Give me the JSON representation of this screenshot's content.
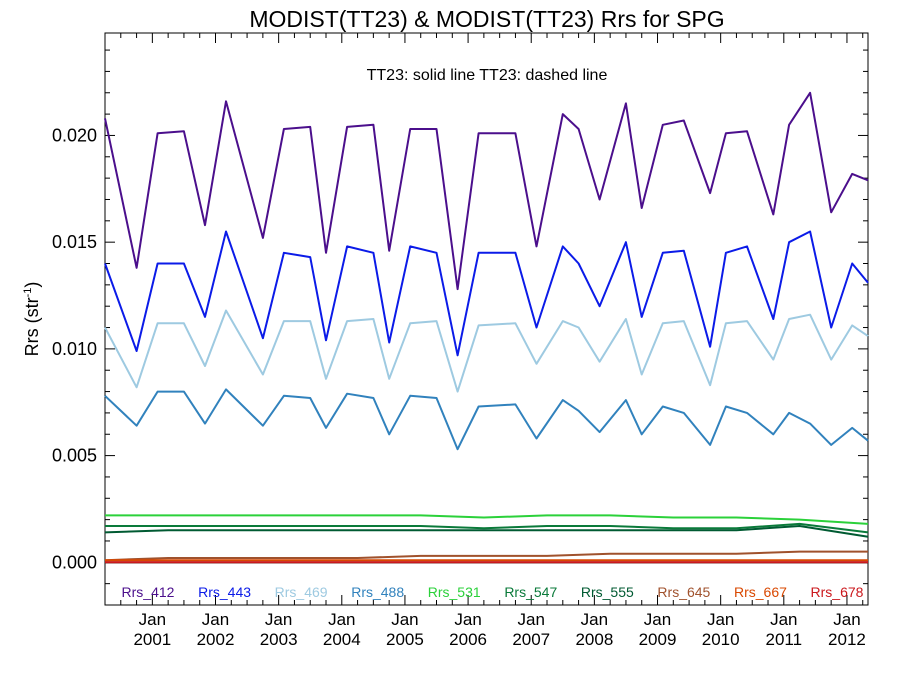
{
  "chart_data": {
    "type": "line",
    "title": "MODIST(TT23) & MODIST(TT23)  Rrs for SPG",
    "subtitle": "TT23: solid line   TT23: dashed line",
    "ylabel": "Rrs (str",
    "ylabel_sup": "-1",
    "ylabel_close": ")",
    "ylim": [
      -0.002,
      0.0248
    ],
    "y_ticks": [
      {
        "value": 0.0,
        "label": "0.000"
      },
      {
        "value": 0.005,
        "label": "0.005"
      },
      {
        "value": 0.01,
        "label": "0.010"
      },
      {
        "value": 0.015,
        "label": "0.015"
      },
      {
        "value": 0.02,
        "label": "0.020"
      }
    ],
    "x_start": "2000-04",
    "x_end": "2012-05",
    "x_ticks": [
      {
        "date": "2001-01",
        "month": "Jan",
        "year": "2001"
      },
      {
        "date": "2002-01",
        "month": "Jan",
        "year": "2002"
      },
      {
        "date": "2003-01",
        "month": "Jan",
        "year": "2003"
      },
      {
        "date": "2004-01",
        "month": "Jan",
        "year": "2004"
      },
      {
        "date": "2005-01",
        "month": "Jan",
        "year": "2005"
      },
      {
        "date": "2006-01",
        "month": "Jan",
        "year": "2006"
      },
      {
        "date": "2007-01",
        "month": "Jan",
        "year": "2007"
      },
      {
        "date": "2008-01",
        "month": "Jan",
        "year": "2008"
      },
      {
        "date": "2009-01",
        "month": "Jan",
        "year": "2009"
      },
      {
        "date": "2010-01",
        "month": "Jan",
        "year": "2010"
      },
      {
        "date": "2011-01",
        "month": "Jan",
        "year": "2011"
      },
      {
        "date": "2012-01",
        "month": "Jan",
        "year": "2012"
      }
    ],
    "grid": false,
    "legend_placement": "bottom",
    "series": [
      {
        "name": "Rrs_412",
        "color": "#4b0f8c",
        "x": [
          "2000-04",
          "2000-10",
          "2001-02",
          "2001-07",
          "2001-11",
          "2002-03",
          "2002-10",
          "2003-02",
          "2003-07",
          "2003-10",
          "2004-02",
          "2004-07",
          "2004-10",
          "2005-02",
          "2005-07",
          "2005-11",
          "2006-03",
          "2006-10",
          "2007-02",
          "2007-07",
          "2007-10",
          "2008-02",
          "2008-07",
          "2008-10",
          "2009-02",
          "2009-06",
          "2009-11",
          "2010-02",
          "2010-06",
          "2010-11",
          "2011-02",
          "2011-06",
          "2011-10",
          "2012-02",
          "2012-05"
        ],
        "values": [
          0.0208,
          0.0138,
          0.0201,
          0.0202,
          0.0158,
          0.0216,
          0.0152,
          0.0203,
          0.0204,
          0.0145,
          0.0204,
          0.0205,
          0.0146,
          0.0203,
          0.0203,
          0.0128,
          0.0201,
          0.0201,
          0.0148,
          0.021,
          0.0203,
          0.017,
          0.0215,
          0.0166,
          0.0205,
          0.0207,
          0.0173,
          0.0201,
          0.0202,
          0.0163,
          0.0205,
          0.022,
          0.0164,
          0.0182,
          0.0179
        ]
      },
      {
        "name": "Rrs_443",
        "color": "#0b1be8",
        "x": [
          "2000-04",
          "2000-10",
          "2001-02",
          "2001-07",
          "2001-11",
          "2002-03",
          "2002-10",
          "2003-02",
          "2003-07",
          "2003-10",
          "2004-02",
          "2004-07",
          "2004-10",
          "2005-02",
          "2005-07",
          "2005-11",
          "2006-03",
          "2006-10",
          "2007-02",
          "2007-07",
          "2007-10",
          "2008-02",
          "2008-07",
          "2008-10",
          "2009-02",
          "2009-06",
          "2009-11",
          "2010-02",
          "2010-06",
          "2010-11",
          "2011-02",
          "2011-06",
          "2011-10",
          "2012-02",
          "2012-05"
        ],
        "values": [
          0.014,
          0.0099,
          0.014,
          0.014,
          0.0115,
          0.0155,
          0.0105,
          0.0145,
          0.0143,
          0.0104,
          0.0148,
          0.0145,
          0.0103,
          0.0148,
          0.0145,
          0.0097,
          0.0145,
          0.0145,
          0.011,
          0.0148,
          0.014,
          0.012,
          0.015,
          0.0115,
          0.0145,
          0.0146,
          0.0101,
          0.0145,
          0.0148,
          0.0114,
          0.015,
          0.0155,
          0.011,
          0.014,
          0.0131
        ]
      },
      {
        "name": "Rrs_469",
        "color": "#9ecae1",
        "x": [
          "2000-04",
          "2000-10",
          "2001-02",
          "2001-07",
          "2001-11",
          "2002-03",
          "2002-10",
          "2003-02",
          "2003-07",
          "2003-10",
          "2004-02",
          "2004-07",
          "2004-10",
          "2005-02",
          "2005-07",
          "2005-11",
          "2006-03",
          "2006-10",
          "2007-02",
          "2007-07",
          "2007-10",
          "2008-02",
          "2008-07",
          "2008-10",
          "2009-02",
          "2009-06",
          "2009-11",
          "2010-02",
          "2010-06",
          "2010-11",
          "2011-02",
          "2011-06",
          "2011-10",
          "2012-02",
          "2012-05"
        ],
        "values": [
          0.011,
          0.0082,
          0.0112,
          0.0112,
          0.0092,
          0.0118,
          0.0088,
          0.0113,
          0.0113,
          0.0086,
          0.0113,
          0.0114,
          0.0086,
          0.0112,
          0.0113,
          0.008,
          0.0111,
          0.0112,
          0.0093,
          0.0113,
          0.011,
          0.0094,
          0.0114,
          0.0088,
          0.0112,
          0.0113,
          0.0083,
          0.0112,
          0.0113,
          0.0095,
          0.0114,
          0.0116,
          0.0095,
          0.0111,
          0.0106
        ]
      },
      {
        "name": "Rrs_488",
        "color": "#3182bd",
        "x": [
          "2000-04",
          "2000-10",
          "2001-02",
          "2001-07",
          "2001-11",
          "2002-03",
          "2002-10",
          "2003-02",
          "2003-07",
          "2003-10",
          "2004-02",
          "2004-07",
          "2004-10",
          "2005-02",
          "2005-07",
          "2005-11",
          "2006-03",
          "2006-10",
          "2007-02",
          "2007-07",
          "2007-10",
          "2008-02",
          "2008-07",
          "2008-10",
          "2009-02",
          "2009-06",
          "2009-11",
          "2010-02",
          "2010-06",
          "2010-11",
          "2011-02",
          "2011-06",
          "2011-10",
          "2012-02",
          "2012-05"
        ],
        "values": [
          0.0078,
          0.0064,
          0.008,
          0.008,
          0.0065,
          0.0081,
          0.0064,
          0.0078,
          0.0077,
          0.0063,
          0.0079,
          0.0077,
          0.006,
          0.0078,
          0.0077,
          0.0053,
          0.0073,
          0.0074,
          0.0058,
          0.0076,
          0.0071,
          0.0061,
          0.0076,
          0.006,
          0.0073,
          0.007,
          0.0055,
          0.0073,
          0.007,
          0.006,
          0.007,
          0.0065,
          0.0055,
          0.0063,
          0.0057
        ]
      },
      {
        "name": "Rrs_531",
        "color": "#2bd13a",
        "x": [
          "2000-04",
          "2001-04",
          "2002-04",
          "2003-04",
          "2004-04",
          "2005-04",
          "2006-04",
          "2007-04",
          "2008-04",
          "2009-04",
          "2010-04",
          "2011-04",
          "2012-05"
        ],
        "values": [
          0.0022,
          0.0022,
          0.0022,
          0.0022,
          0.0022,
          0.0022,
          0.0021,
          0.0022,
          0.0022,
          0.0021,
          0.0021,
          0.002,
          0.0018
        ]
      },
      {
        "name": "Rrs_547",
        "color": "#0a7a3a",
        "x": [
          "2000-04",
          "2001-04",
          "2002-04",
          "2003-04",
          "2004-04",
          "2005-04",
          "2006-04",
          "2007-04",
          "2008-04",
          "2009-04",
          "2010-04",
          "2011-04",
          "2012-05"
        ],
        "values": [
          0.0017,
          0.0017,
          0.0017,
          0.0017,
          0.0017,
          0.0017,
          0.0016,
          0.0017,
          0.0017,
          0.0016,
          0.0016,
          0.0018,
          0.0014
        ]
      },
      {
        "name": "Rrs_555",
        "color": "#005a32",
        "x": [
          "2000-04",
          "2001-04",
          "2002-04",
          "2003-04",
          "2004-04",
          "2005-04",
          "2006-04",
          "2007-04",
          "2008-04",
          "2009-04",
          "2010-04",
          "2011-04",
          "2012-05"
        ],
        "values": [
          0.0014,
          0.0015,
          0.0015,
          0.0015,
          0.0015,
          0.0015,
          0.0015,
          0.0015,
          0.0015,
          0.0015,
          0.0015,
          0.0017,
          0.0012
        ]
      },
      {
        "name": "Rrs_645",
        "color": "#a0522d",
        "x": [
          "2000-04",
          "2001-04",
          "2002-04",
          "2003-04",
          "2004-04",
          "2005-04",
          "2006-04",
          "2007-04",
          "2008-04",
          "2009-04",
          "2010-04",
          "2011-04",
          "2012-05"
        ],
        "values": [
          0.0001,
          0.0002,
          0.0002,
          0.0002,
          0.0002,
          0.0003,
          0.0003,
          0.0003,
          0.0004,
          0.0004,
          0.0004,
          0.0005,
          0.0005
        ]
      },
      {
        "name": "Rrs_667",
        "color": "#d94801",
        "x": [
          "2000-04",
          "2002-04",
          "2004-04",
          "2006-04",
          "2008-04",
          "2010-04",
          "2012-05"
        ],
        "values": [
          0.0001,
          0.0001,
          0.0001,
          0.0001,
          0.0001,
          0.0001,
          0.0001
        ]
      },
      {
        "name": "Rrs_678",
        "color": "#cb181d",
        "x": [
          "2000-04",
          "2002-04",
          "2004-04",
          "2006-04",
          "2008-04",
          "2010-04",
          "2012-05"
        ],
        "values": [
          0.0,
          0.0,
          0.0,
          0.0,
          0.0,
          0.0,
          0.0
        ]
      }
    ]
  }
}
